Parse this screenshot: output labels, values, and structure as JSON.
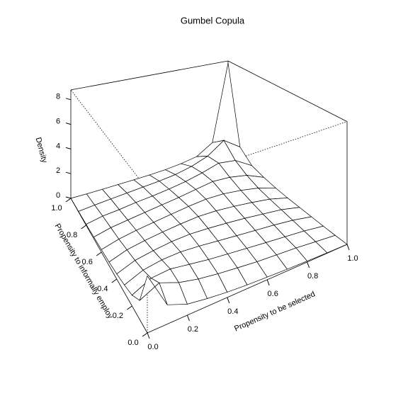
{
  "chart_data": {
    "type": "surface",
    "title": "Gumbel Copula",
    "xlabel": "Propensity to be selected",
    "ylabel": "Propensity to informally employ",
    "zlabel": "Density",
    "x": [
      0,
      0.1,
      0.2,
      0.3,
      0.4,
      0.5,
      0.6,
      0.7,
      0.8,
      0.9,
      1
    ],
    "y": [
      0,
      0.1,
      0.2,
      0.3,
      0.4,
      0.5,
      0.6,
      0.7,
      0.8,
      0.9,
      1
    ],
    "z": [
      [
        3.5,
        1.2,
        0.7,
        0.5,
        0.35,
        0.25,
        0.18,
        0.12,
        0.07,
        0.03,
        0
      ],
      [
        1.2,
        1.8,
        1.3,
        1.0,
        0.8,
        0.65,
        0.5,
        0.4,
        0.3,
        0.15,
        0
      ],
      [
        0.7,
        1.3,
        1.4,
        1.2,
        1.0,
        0.85,
        0.7,
        0.55,
        0.4,
        0.25,
        0.02
      ],
      [
        0.5,
        1.0,
        1.2,
        1.25,
        1.15,
        1.0,
        0.85,
        0.7,
        0.55,
        0.35,
        0.05
      ],
      [
        0.35,
        0.8,
        1.0,
        1.15,
        1.2,
        1.12,
        1.0,
        0.85,
        0.65,
        0.45,
        0.08
      ],
      [
        0.25,
        0.65,
        0.85,
        1.0,
        1.12,
        1.2,
        1.15,
        1.0,
        0.8,
        0.55,
        0.12
      ],
      [
        0.18,
        0.5,
        0.7,
        0.85,
        1.0,
        1.15,
        1.25,
        1.2,
        1.0,
        0.7,
        0.2
      ],
      [
        0.12,
        0.4,
        0.55,
        0.7,
        0.85,
        1.0,
        1.2,
        1.4,
        1.3,
        1.0,
        0.35
      ],
      [
        0.07,
        0.3,
        0.4,
        0.55,
        0.65,
        0.8,
        1.0,
        1.3,
        1.7,
        1.5,
        0.6
      ],
      [
        0.03,
        0.15,
        0.25,
        0.35,
        0.45,
        0.55,
        0.7,
        1.0,
        1.5,
        2.5,
        1.5
      ],
      [
        0,
        0,
        0.02,
        0.05,
        0.08,
        0.12,
        0.2,
        0.35,
        0.6,
        1.5,
        8.6
      ]
    ],
    "xlim": [
      0,
      1
    ],
    "ylim": [
      0,
      1
    ],
    "zlim": [
      0,
      8.8
    ],
    "xticks": [
      {
        "value": 0,
        "label": "0.0"
      },
      {
        "value": 0.2,
        "label": "0.2"
      },
      {
        "value": 0.4,
        "label": "0.4"
      },
      {
        "value": 0.6,
        "label": "0.6"
      },
      {
        "value": 0.8,
        "label": "0.8"
      },
      {
        "value": 1,
        "label": "1.0"
      }
    ],
    "yticks": [
      {
        "value": 0,
        "label": "0.0"
      },
      {
        "value": 0.2,
        "label": "0.2"
      },
      {
        "value": 0.4,
        "label": "0.4"
      },
      {
        "value": 0.6,
        "label": "0.6"
      },
      {
        "value": 0.8,
        "label": "0.8"
      },
      {
        "value": 1,
        "label": "1.0"
      }
    ],
    "zticks": [
      0,
      2,
      4,
      6,
      8
    ]
  }
}
